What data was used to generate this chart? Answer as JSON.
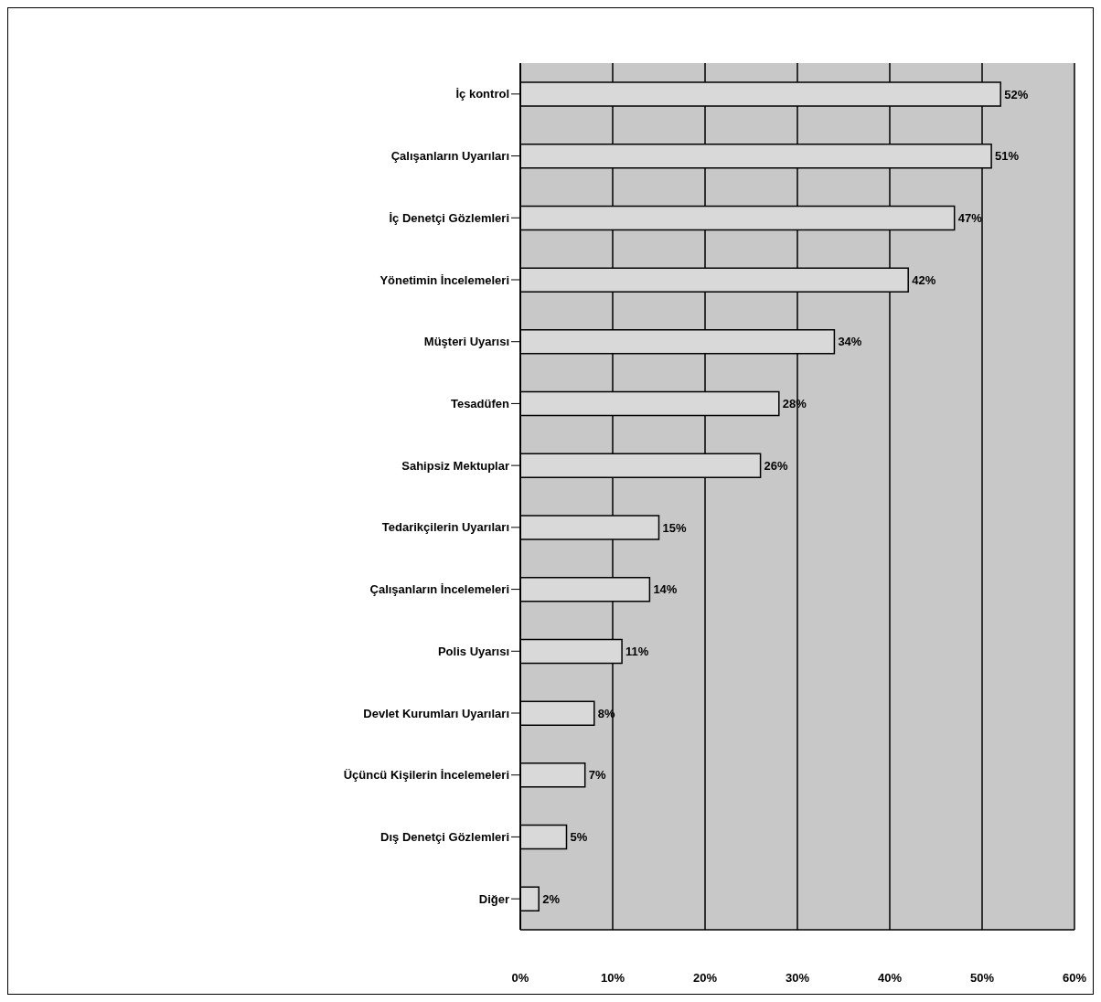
{
  "chart_data": {
    "type": "bar",
    "orientation": "horizontal",
    "categories": [
      "İç kontrol",
      "Çalışanların Uyarıları",
      "İç Denetçi Gözlemleri",
      "Yönetimin İncelemeleri",
      "Müşteri Uyarısı",
      "Tesadüfen",
      "Sahipsiz Mektuplar",
      "Tedarikçilerin Uyarıları",
      "Çalışanların İncelemeleri",
      "Polis Uyarısı",
      "Devlet Kurumları Uyarıları",
      "Üçüncü Kişilerin İncelemeleri",
      "Dış Denetçi Gözlemleri",
      "Diğer"
    ],
    "values": [
      52,
      51,
      47,
      42,
      34,
      28,
      26,
      15,
      14,
      11,
      8,
      7,
      5,
      2
    ],
    "value_labels": [
      "52%",
      "51%",
      "47%",
      "42%",
      "34%",
      "28%",
      "26%",
      "15%",
      "14%",
      "11%",
      "8%",
      "7%",
      "5%",
      "2%"
    ],
    "color": "#d9d9d9",
    "xlim": [
      0,
      60
    ],
    "xticks": [
      {
        "value": 0,
        "label": "0%"
      },
      {
        "value": 10,
        "label": "10%"
      },
      {
        "value": 20,
        "label": "20%"
      },
      {
        "value": 30,
        "label": "30%"
      },
      {
        "value": 40,
        "label": "40%"
      },
      {
        "value": 50,
        "label": "50%"
      },
      {
        "value": 60,
        "label": "60%"
      }
    ],
    "grid": "x"
  }
}
